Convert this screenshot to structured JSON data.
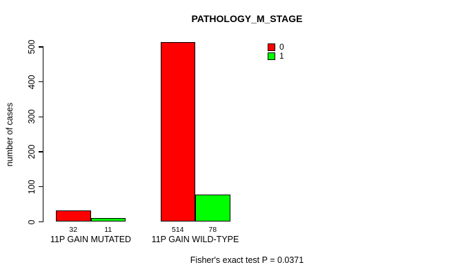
{
  "chart_data": {
    "type": "bar",
    "title": "PATHOLOGY_M_STAGE",
    "categories": [
      "11P GAIN MUTATED",
      "11P GAIN WILD-TYPE"
    ],
    "series": [
      {
        "name": "0",
        "color": "#ff0000",
        "values": [
          32,
          514
        ]
      },
      {
        "name": "1",
        "color": "#00ff00",
        "values": [
          11,
          78
        ]
      }
    ],
    "ylabel": "number of cases",
    "yticks": [
      0,
      100,
      200,
      300,
      400,
      500
    ],
    "ylim": [
      0,
      520
    ],
    "grid": false,
    "bar_outline_color": "#000000",
    "legend_position": "top-right",
    "legend_entries": [
      "0",
      "1"
    ],
    "annotation": "Fisher's exact test P = 0.0371",
    "background": "#ffffff",
    "text_color": "#000000"
  }
}
